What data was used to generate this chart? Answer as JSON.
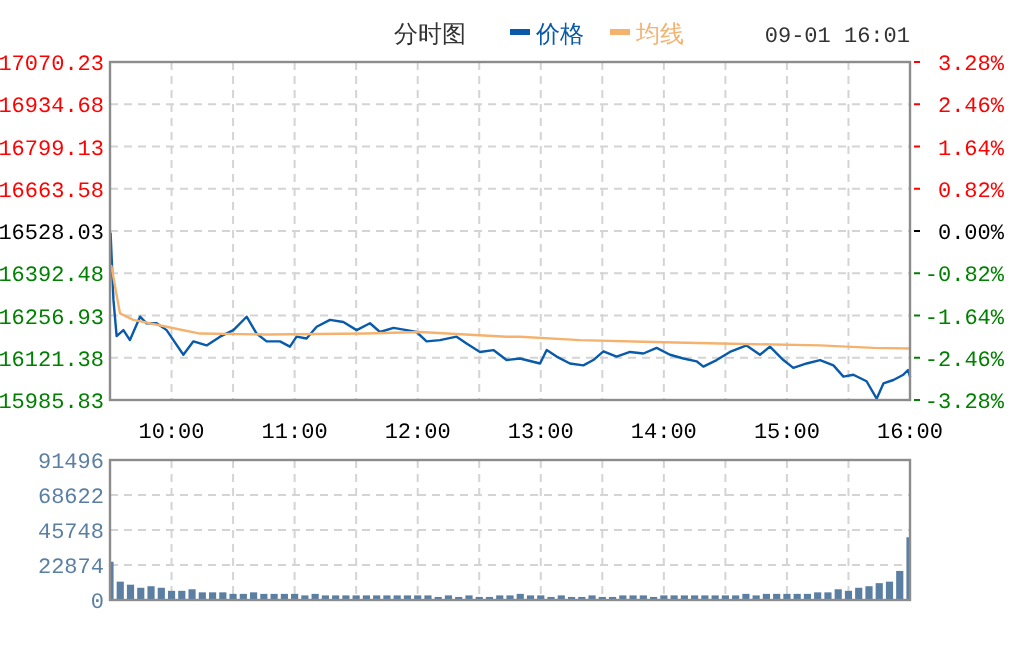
{
  "chart_data": [
    {
      "type": "line",
      "title": "分时图",
      "annotations": [
        "09-01 16:01"
      ],
      "legend": "top",
      "grid": true,
      "xlim": [
        9.5,
        16
      ],
      "xticks": [
        {
          "value": 10,
          "label": "10:00"
        },
        {
          "value": 10.5,
          "label": null
        },
        {
          "value": 11,
          "label": "11:00"
        },
        {
          "value": 11.5,
          "label": null
        },
        {
          "value": 12,
          "label": "12:00"
        },
        {
          "value": 12.5,
          "label": null
        },
        {
          "value": 13,
          "label": "13:00"
        },
        {
          "value": 13.5,
          "label": null
        },
        {
          "value": 14,
          "label": "14:00"
        },
        {
          "value": 14.5,
          "label": null
        },
        {
          "value": 15,
          "label": "15:00"
        },
        {
          "value": 15.5,
          "label": null
        },
        {
          "value": 16,
          "label": "16:00"
        }
      ],
      "ylim": [
        15985.83,
        17070.23
      ],
      "yticks": [
        15985.83,
        16121.38,
        16256.93,
        16392.48,
        16528.03,
        16663.58,
        16799.13,
        16934.68,
        17070.23
      ],
      "y2lim": [
        -3.28,
        3.28
      ],
      "y2ticks": [
        {
          "value": -3.28,
          "label": "-3.28%"
        },
        {
          "value": -2.46,
          "label": "-2.46%"
        },
        {
          "value": -1.64,
          "label": "-1.64%"
        },
        {
          "value": -0.82,
          "label": "-0.82%"
        },
        {
          "value": 0,
          "label": "0.00%"
        },
        {
          "value": 0.82,
          "label": "0.82%"
        },
        {
          "value": 1.64,
          "label": "1.64%"
        },
        {
          "value": 2.46,
          "label": "2.46%"
        },
        {
          "value": 3.28,
          "label": "3.28%"
        }
      ],
      "series": [
        {
          "name": "价格",
          "color": "#0a5aaa",
          "x": [
            9.505,
            9.528,
            9.554,
            9.609,
            9.662,
            9.744,
            9.797,
            9.879,
            9.96,
            10.015,
            10.096,
            10.178,
            10.285,
            10.394,
            10.503,
            10.61,
            10.691,
            10.772,
            10.881,
            10.962,
            11.016,
            11.097,
            11.179,
            11.287,
            11.396,
            11.504,
            11.612,
            11.694,
            11.803,
            11.91,
            11.991,
            12.072,
            12.181,
            12.316,
            12.397,
            12.506,
            12.615,
            12.722,
            12.831,
            12.994,
            13.048,
            13.129,
            13.237,
            13.346,
            13.427,
            13.509,
            13.616,
            13.725,
            13.834,
            13.941,
            14.05,
            14.159,
            14.266,
            14.321,
            14.429,
            14.537,
            14.672,
            14.781,
            14.862,
            14.971,
            15.052,
            15.16,
            15.269,
            15.378,
            15.459,
            15.54,
            15.647,
            15.729,
            15.784,
            15.865,
            15.946,
            15.984,
            16.0
          ],
          "values": [
            16520,
            16307,
            16191,
            16210,
            16178,
            16253,
            16232,
            16232,
            16210,
            16178,
            16131,
            16174,
            16161,
            16189,
            16210,
            16253,
            16199,
            16174,
            16174,
            16157,
            16189,
            16183,
            16221,
            16243,
            16236,
            16210,
            16232,
            16204,
            16217,
            16210,
            16204,
            16174,
            16178,
            16189,
            16167,
            16140,
            16146,
            16114,
            16119,
            16103,
            16146,
            16125,
            16103,
            16097,
            16114,
            16142,
            16125,
            16140,
            16135,
            16153,
            16131,
            16119,
            16110,
            16093,
            16114,
            16140,
            16161,
            16131,
            16157,
            16114,
            16089,
            16103,
            16114,
            16097,
            16061,
            16067,
            16046,
            15990,
            16039,
            16050,
            16067,
            16082,
            16061
          ]
        },
        {
          "name": "均线",
          "color": "#f5b26e",
          "x": [
            9.511,
            9.581,
            9.69,
            9.96,
            10.231,
            10.772,
            11.585,
            12.019,
            12.722,
            12.831,
            13.319,
            13.915,
            14.456,
            15.269,
            15.703,
            16.0
          ],
          "values": [
            16416,
            16264,
            16243,
            16221,
            16199,
            16196,
            16199,
            16204,
            16189,
            16189,
            16178,
            16172,
            16167,
            16161,
            16153,
            16151
          ]
        }
      ]
    },
    {
      "type": "bar",
      "grid": true,
      "tick_labels": "y",
      "xlim": [
        9.5,
        16
      ],
      "xticks": [
        {
          "value": 10,
          "label": null
        },
        {
          "value": 10.5,
          "label": null
        },
        {
          "value": 11,
          "label": null
        },
        {
          "value": 11.5,
          "label": null
        },
        {
          "value": 12,
          "label": null
        },
        {
          "value": 12.5,
          "label": null
        },
        {
          "value": 13,
          "label": null
        },
        {
          "value": 13.5,
          "label": null
        },
        {
          "value": 14,
          "label": null
        },
        {
          "value": 14.5,
          "label": null
        },
        {
          "value": 15,
          "label": null
        },
        {
          "value": 15.5,
          "label": null
        },
        {
          "value": 16,
          "label": null
        }
      ],
      "ylim": [
        0,
        91496
      ],
      "yticks": [
        0,
        22874,
        45748,
        68622,
        91496
      ],
      "series": [
        {
          "color": "#5b7fa3",
          "x": [
            9.5,
            9.5833,
            9.6667,
            9.75,
            9.8333,
            9.9167,
            10.0,
            10.0833,
            10.1667,
            10.25,
            10.3333,
            10.4167,
            10.5,
            10.5833,
            10.6667,
            10.75,
            10.8333,
            10.9167,
            11.0,
            11.0833,
            11.1667,
            11.25,
            11.3333,
            11.4167,
            11.5,
            11.5833,
            11.6667,
            11.75,
            11.8333,
            11.9167,
            12.0,
            12.0833,
            12.1667,
            12.25,
            12.3333,
            12.4167,
            12.5,
            12.5833,
            12.6667,
            12.75,
            12.8333,
            12.9167,
            13.0,
            13.0833,
            13.1667,
            13.25,
            13.3333,
            13.4167,
            13.5,
            13.5833,
            13.6667,
            13.75,
            13.8333,
            13.9167,
            14.0,
            14.0833,
            14.1667,
            14.25,
            14.3333,
            14.4167,
            14.5,
            14.5833,
            14.6667,
            14.75,
            14.8333,
            14.9167,
            15.0,
            15.0833,
            15.1667,
            15.25,
            15.3333,
            15.4167,
            15.5,
            15.5833,
            15.6667,
            15.75,
            15.8333,
            15.9167,
            16.0
          ],
          "values": [
            25000,
            12000,
            10000,
            8000,
            9000,
            8000,
            6000,
            6000,
            7000,
            5000,
            5000,
            5000,
            4000,
            4000,
            5000,
            4000,
            4000,
            4000,
            4000,
            3000,
            4000,
            3000,
            3000,
            3000,
            3000,
            3000,
            3000,
            3000,
            3000,
            3000,
            3000,
            3000,
            2000,
            3000,
            2000,
            3000,
            2000,
            2000,
            3000,
            3000,
            4000,
            3000,
            3000,
            2000,
            3000,
            2000,
            2000,
            3000,
            2000,
            2000,
            3000,
            3000,
            3000,
            2000,
            3000,
            3000,
            3000,
            3000,
            3000,
            3000,
            3000,
            3000,
            4000,
            3000,
            4000,
            4000,
            4000,
            4000,
            4000,
            5000,
            5000,
            7000,
            6000,
            8000,
            9000,
            11000,
            12000,
            19000,
            41000
          ]
        }
      ]
    }
  ]
}
